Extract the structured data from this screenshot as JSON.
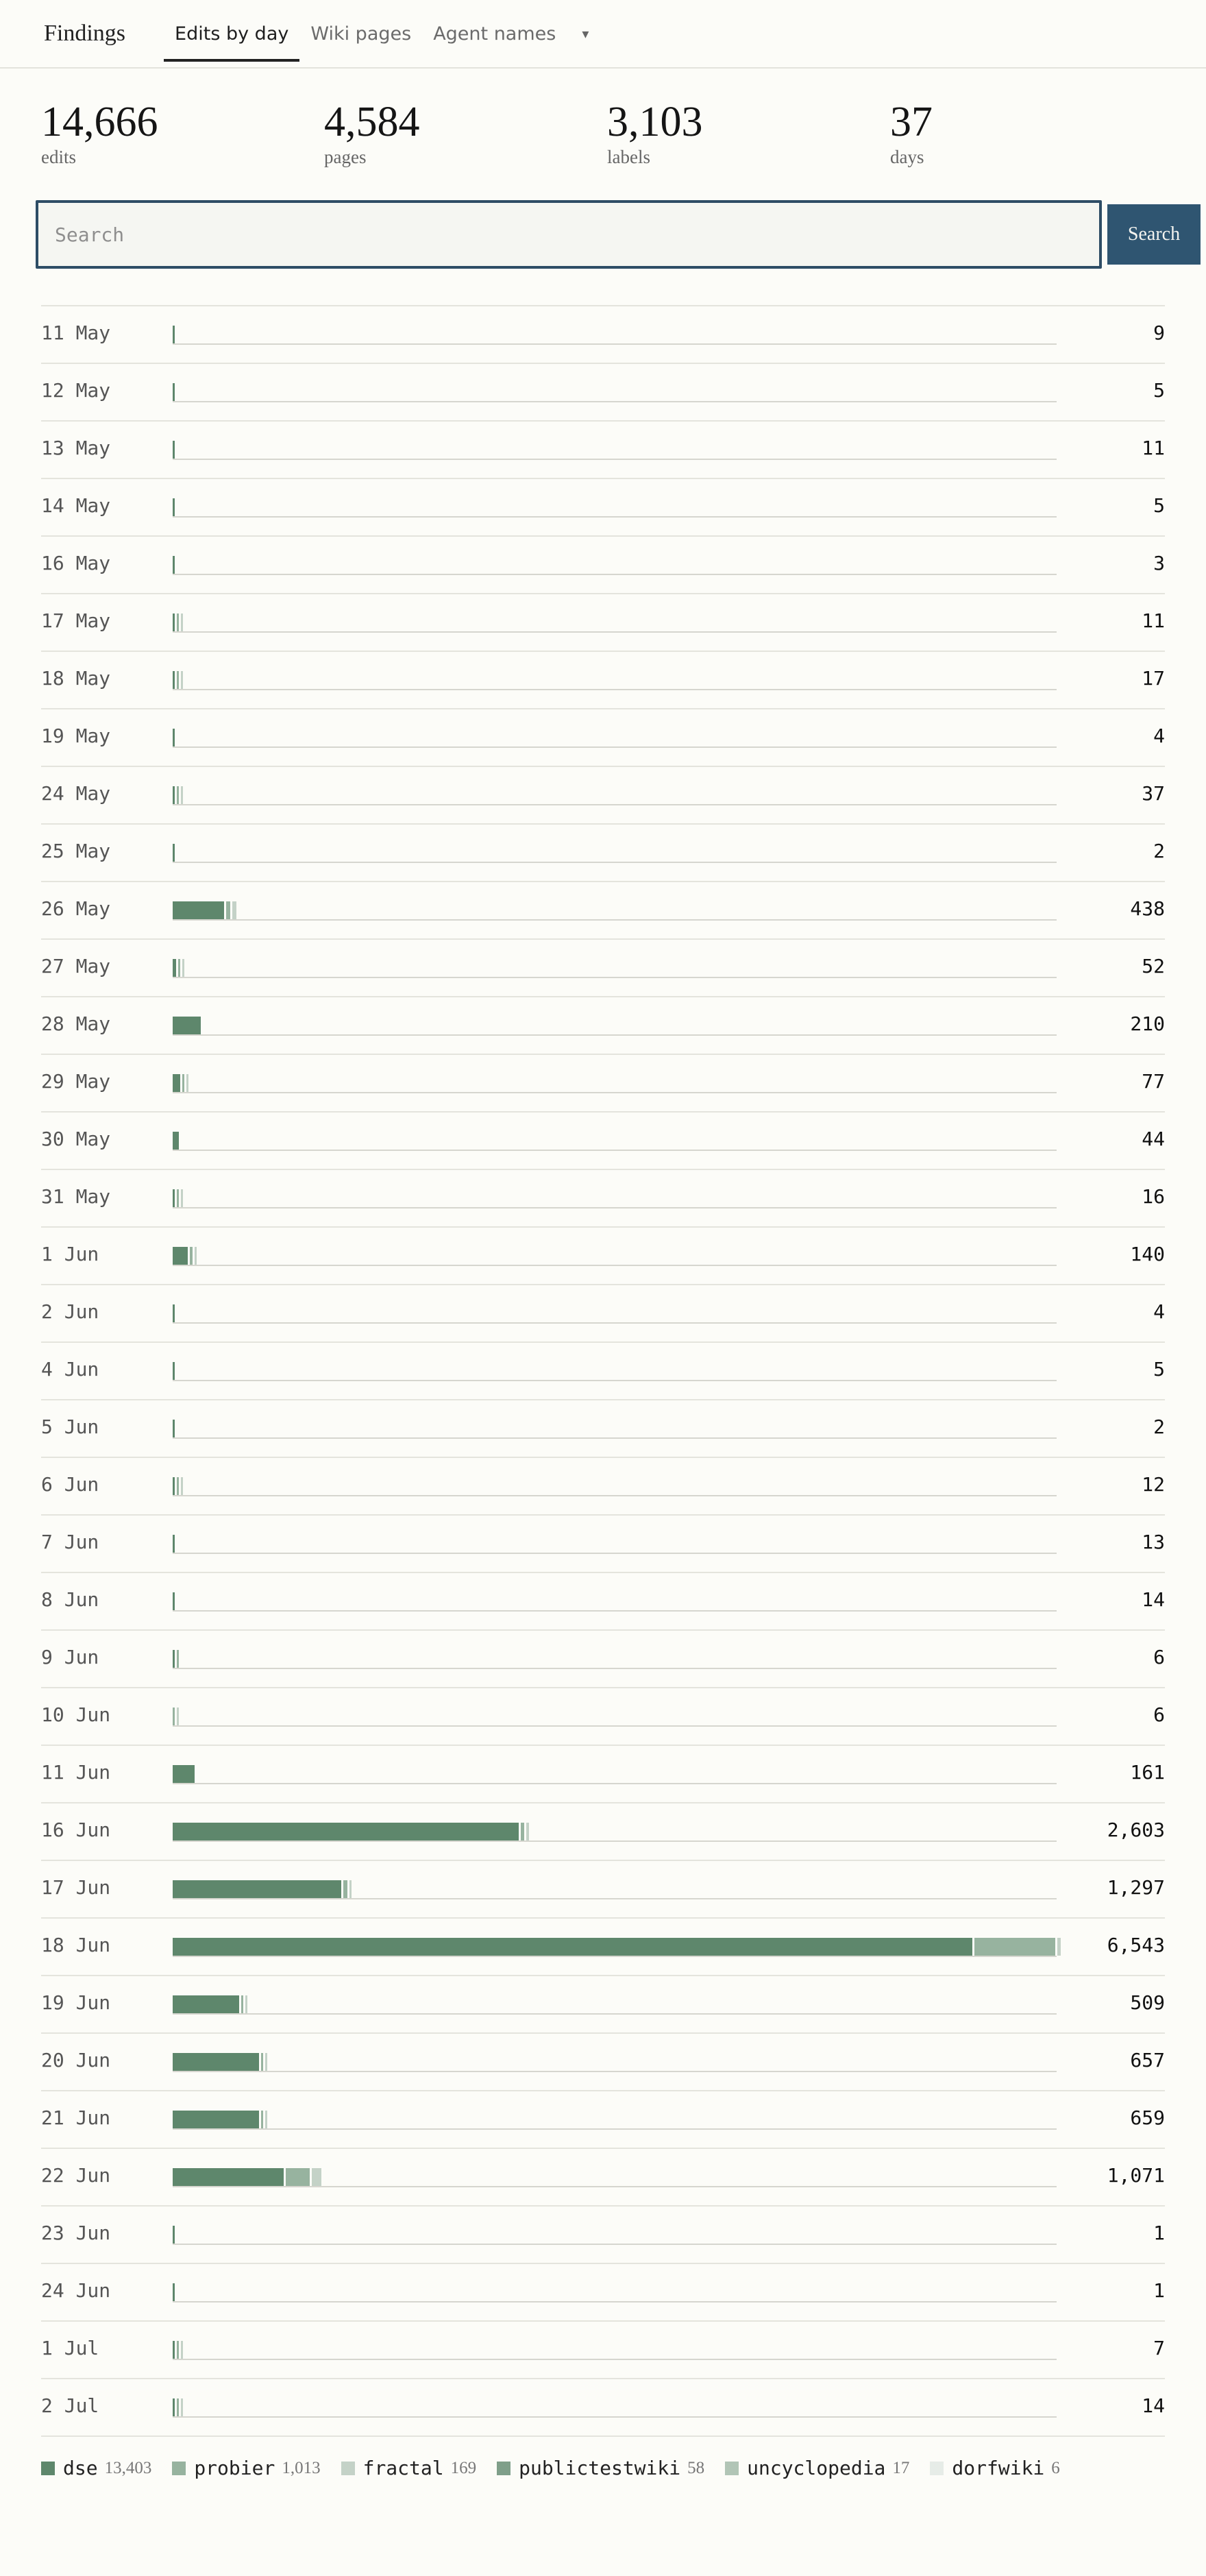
{
  "nav": {
    "brand": "Findings",
    "tabs": [
      "Edits by day",
      "Wiki pages",
      "Agent names"
    ],
    "active_tab": 0,
    "more_glyph": "▾"
  },
  "stats": [
    {
      "value": "14,666",
      "label": "edits"
    },
    {
      "value": "4,584",
      "label": "pages"
    },
    {
      "value": "3,103",
      "label": "labels"
    },
    {
      "value": "37",
      "label": "days"
    }
  ],
  "search": {
    "placeholder": "Search",
    "value": "",
    "button_label": "Search"
  },
  "colors": {
    "dse": "#5e876c",
    "probier": "#97b39f",
    "fractal": "#c4d2c7",
    "publictestwiki": "#7f9f8a",
    "uncyclopedia": "#b1c5b6",
    "dorfwiki": "#e6ece7",
    "accent": "#2f5571"
  },
  "chart_data": {
    "type": "bar",
    "stacked": true,
    "orientation": "horizontal",
    "xlim": [
      0,
      6543
    ],
    "categories": [
      "11 May",
      "12 May",
      "13 May",
      "14 May",
      "16 May",
      "17 May",
      "18 May",
      "19 May",
      "24 May",
      "25 May",
      "26 May",
      "27 May",
      "28 May",
      "29 May",
      "30 May",
      "31 May",
      "1 Jun",
      "2 Jun",
      "4 Jun",
      "5 Jun",
      "6 Jun",
      "7 Jun",
      "8 Jun",
      "9 Jun",
      "10 Jun",
      "11 Jun",
      "16 Jun",
      "17 Jun",
      "18 Jun",
      "19 Jun",
      "20 Jun",
      "21 Jun",
      "22 Jun",
      "23 Jun",
      "24 Jun",
      "1 Jul",
      "2 Jul"
    ],
    "totals": [
      "9",
      "5",
      "11",
      "5",
      "3",
      "11",
      "17",
      "4",
      "37",
      "2",
      "438",
      "52",
      "210",
      "77",
      "44",
      "16",
      "140",
      "4",
      "5",
      "2",
      "12",
      "13",
      "14",
      "6",
      "6",
      "161",
      "2,603",
      "1,297",
      "6,543",
      "509",
      "657",
      "659",
      "1,071",
      "1",
      "1",
      "7",
      "14"
    ],
    "series": [
      {
        "name": "dse",
        "values": [
          9,
          5,
          11,
          5,
          3,
          5,
          9,
          4,
          15,
          2,
          380,
          25,
          210,
          55,
          44,
          8,
          110,
          4,
          5,
          2,
          6,
          13,
          14,
          3,
          0,
          161,
          2560,
          1250,
          5920,
          490,
          640,
          640,
          820,
          1,
          1,
          3,
          7
        ]
      },
      {
        "name": "probier",
        "values": [
          0,
          0,
          0,
          0,
          0,
          4,
          5,
          0,
          12,
          0,
          30,
          15,
          0,
          15,
          0,
          5,
          20,
          0,
          0,
          0,
          4,
          0,
          0,
          3,
          3,
          0,
          25,
          30,
          600,
          10,
          12,
          12,
          180,
          0,
          0,
          2,
          4
        ]
      },
      {
        "name": "fractal",
        "values": [
          0,
          0,
          0,
          0,
          0,
          2,
          3,
          0,
          10,
          0,
          28,
          12,
          0,
          7,
          0,
          3,
          10,
          0,
          0,
          0,
          2,
          0,
          0,
          0,
          3,
          0,
          18,
          17,
          23,
          9,
          5,
          7,
          71,
          0,
          0,
          2,
          3
        ]
      }
    ],
    "legend": [
      {
        "name": "dse",
        "count": "13,403"
      },
      {
        "name": "probier",
        "count": "1,013"
      },
      {
        "name": "fractal",
        "count": "169"
      },
      {
        "name": "publictestwiki",
        "count": "58"
      },
      {
        "name": "uncyclopedia",
        "count": "17"
      },
      {
        "name": "dorfwiki",
        "count": "6"
      }
    ],
    "legend_position": "bottom-left"
  }
}
